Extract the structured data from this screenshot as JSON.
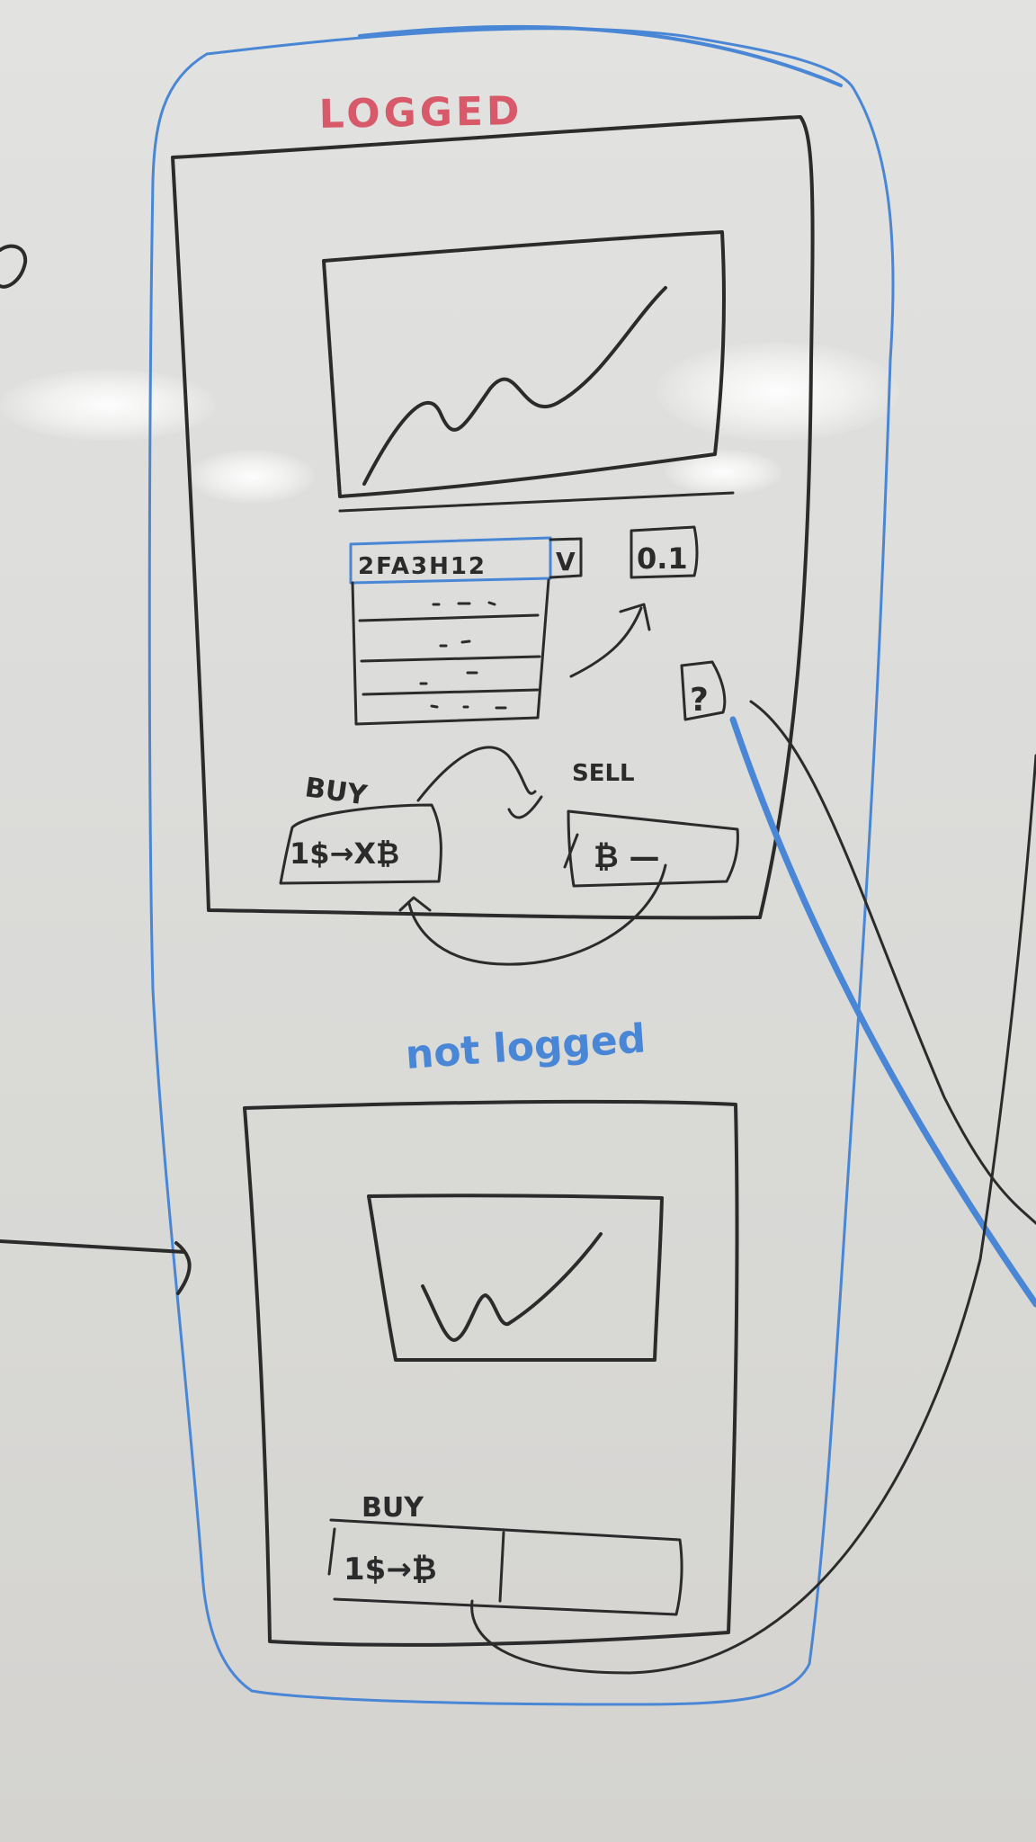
{
  "logged": {
    "title": "LOGGED",
    "dropdown": {
      "value": "2FA3H12",
      "toggle": "V"
    },
    "amount_badge": "0.1",
    "small_button": "?",
    "buy": {
      "label": "BUY",
      "input_text": "1$→X₿"
    },
    "sell": {
      "label": "SELL",
      "input_text": "₿ —"
    }
  },
  "not_logged": {
    "title": "not logged",
    "buy": {
      "label": "BUY",
      "input_text": "1$→₿"
    }
  },
  "colors": {
    "black_marker": "#2b2b2b",
    "blue_marker": "#4a86d6",
    "red_marker": "#d85a6a",
    "board": "#dddddb"
  }
}
